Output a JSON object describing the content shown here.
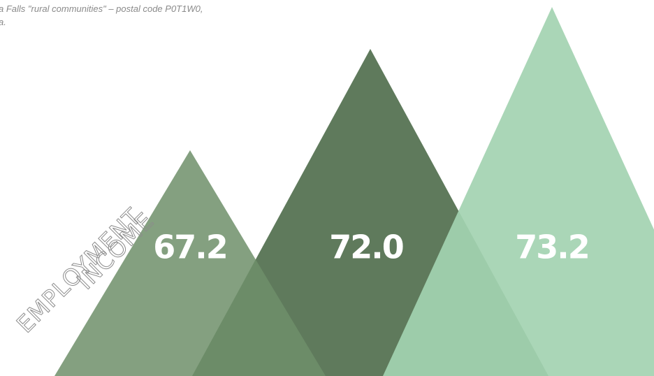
{
  "caption": {
    "lines": [
      "a Falls \"rural communities\" – postal code P0T1W0,",
      "a."
    ]
  },
  "heading": {
    "lines": [
      "EMPLOYMENT",
      "INCOME"
    ]
  },
  "values": [
    "67.2",
    "72.0",
    "73.2"
  ]
}
